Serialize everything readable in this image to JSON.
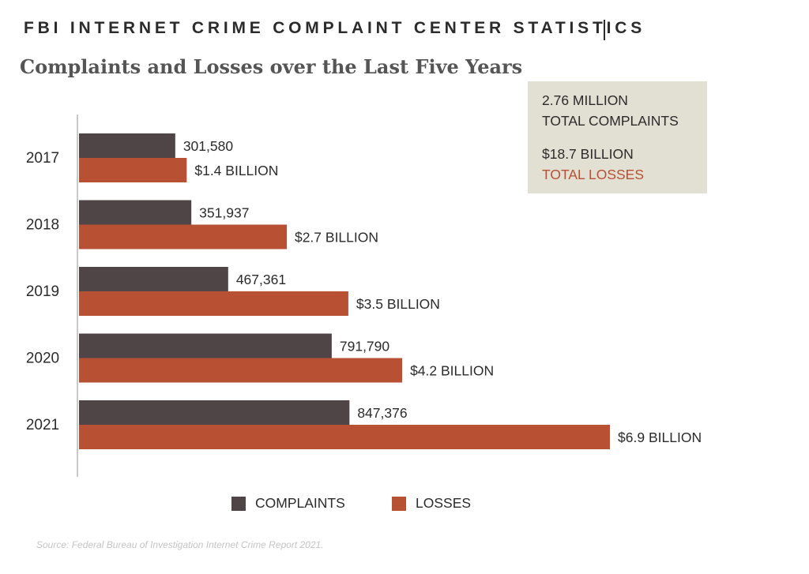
{
  "header": {
    "text": "FBI INTERNET CRIME COMPLAINT CENTER STATISTICS"
  },
  "summary": {
    "complaints_value": "2.76 MILLION",
    "complaints_label": "TOTAL COMPLAINTS",
    "losses_value": "$18.7 BILLION",
    "losses_label": "TOTAL LOSSES"
  },
  "legend": {
    "complaints": "COMPLAINTS",
    "losses": "LOSSES"
  },
  "source": "Source: Federal Bureau of Investigation Internet Crime Report 2021.",
  "colors": {
    "complaints": "#4f4546",
    "losses": "#b85033",
    "summary_bg": "#e2dfd3",
    "axis": "#c9c9c9"
  },
  "chart_data": {
    "type": "bar",
    "orientation": "horizontal",
    "title": "Complaints and Losses over the Last Five Years",
    "categories": [
      "2017",
      "2018",
      "2019",
      "2020",
      "2021"
    ],
    "series": [
      {
        "name": "COMPLAINTS",
        "values": [
          301580,
          351937,
          467361,
          791790,
          847376
        ],
        "labels": [
          "301,580",
          "351,937",
          "467,361",
          "791,790",
          "847,376"
        ]
      },
      {
        "name": "LOSSES",
        "values": [
          1.4,
          2.7,
          3.5,
          4.2,
          6.9
        ],
        "labels": [
          "$1.4 BILLION",
          "$2.7 BILLION",
          "$3.5 BILLION",
          "$4.2 BILLION",
          "$6.9 BILLION"
        ]
      }
    ],
    "legend_position": "bottom",
    "grid": false
  }
}
